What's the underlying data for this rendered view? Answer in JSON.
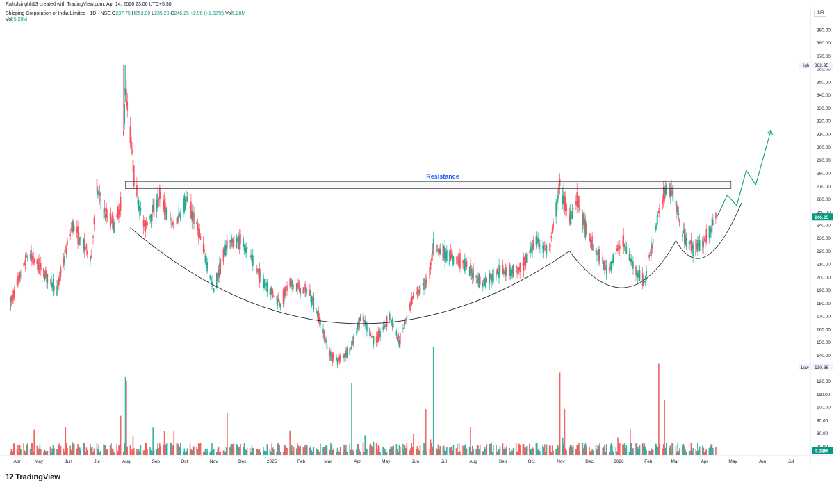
{
  "header": {
    "credit": "Rahulsinghh13 created with TradingView.com, Apr 14, 2026 23:06 UTC+5:30",
    "symbol": "Shipping Corporation of India Limited · 1D · NSE",
    "ohlc": [
      {
        "label": "O",
        "value": "237.75"
      },
      {
        "label": "H",
        "value": "253.00"
      },
      {
        "label": "L",
        "value": "235.20"
      },
      {
        "label": "C",
        "value": "246.25"
      },
      {
        "label": "",
        "value": "+2.96 (+1.22%)"
      }
    ],
    "vol_label": "Vol",
    "vol_value": "5.28M",
    "vol_line_label": "Vol",
    "vol_line_value": "5.28M"
  },
  "currency": "INR",
  "logo": {
    "mark": "17",
    "text": "TradingView"
  },
  "colors": {
    "up": "#089981",
    "down": "#f23645",
    "up_candle": "#22ab94",
    "down_candle": "#f7525f",
    "vol_up": "#26a69a",
    "vol_down": "#ef5350",
    "annotation": "#131722",
    "resistance_text": "#2962ff",
    "arrow": "#089981",
    "price_line": "#089981"
  },
  "chart_data": {
    "type": "candlestick",
    "title": "",
    "y_axis": {
      "ticks": [
        "390.00",
        "380.00",
        "370.00",
        "360.00",
        "350.00",
        "340.00",
        "330.00",
        "320.00",
        "310.00",
        "300.00",
        "290.00",
        "280.00",
        "270.00",
        "260.00",
        "250.00",
        "240.00",
        "230.00",
        "220.00",
        "210.00",
        "200.00",
        "190.00",
        "180.00",
        "170.00",
        "160.00",
        "150.00",
        "140.00",
        "130.00",
        "120.00",
        "110.00",
        "100.00",
        "90.00",
        "80.00",
        "70.00"
      ],
      "range": [
        65,
        398
      ]
    },
    "x_axis": {
      "ticks": [
        "Apr",
        "May",
        "Jun",
        "Jul",
        "Aug",
        "Sep",
        "Oct",
        "Nov",
        "Dec",
        "2025",
        "Feb",
        "Mar",
        "Apr",
        "May",
        "Jun",
        "Jul",
        "Aug",
        "Sep",
        "Oct",
        "Nov",
        "Dec",
        "2026",
        "Feb",
        "Mar",
        "Apr",
        "May",
        "Jun",
        "Jul"
      ],
      "range": [
        "2024-04",
        "2026-07"
      ]
    },
    "price_labels": {
      "high": {
        "label": "High",
        "value": "362.95"
      },
      "low": {
        "label": "Low",
        "value": "130.86"
      },
      "last": {
        "value": "246.25"
      },
      "volume": {
        "value": "5.28M"
      }
    },
    "series": [
      {
        "name": "price",
        "daily_ohlc": "candles, approximated from the visible path",
        "path_points": [
          [
            "2024-04-01",
            180
          ],
          [
            "2024-04-20",
            218
          ],
          [
            "2024-05-10",
            200
          ],
          [
            "2024-05-20",
            190
          ],
          [
            "2024-06-05",
            240
          ],
          [
            "2024-06-25",
            215
          ],
          [
            "2024-07-01",
            268
          ],
          [
            "2024-07-10",
            248
          ],
          [
            "2024-07-20",
            240
          ],
          [
            "2024-07-26",
            255
          ],
          [
            "2024-07-31",
            345
          ],
          [
            "2024-08-05",
            310
          ],
          [
            "2024-08-10",
            270
          ],
          [
            "2024-08-20",
            238
          ],
          [
            "2024-09-05",
            262
          ],
          [
            "2024-09-20",
            238
          ],
          [
            "2024-10-03",
            260
          ],
          [
            "2024-10-15",
            238
          ],
          [
            "2024-11-01",
            190
          ],
          [
            "2024-11-15",
            226
          ],
          [
            "2024-12-01",
            228
          ],
          [
            "2024-12-20",
            200
          ],
          [
            "2025-01-10",
            180
          ],
          [
            "2025-01-20",
            195
          ],
          [
            "2025-02-10",
            188
          ],
          [
            "2025-02-20",
            168
          ],
          [
            "2025-03-03",
            140
          ],
          [
            "2025-03-12",
            136
          ],
          [
            "2025-03-25",
            145
          ],
          [
            "2025-04-05",
            170
          ],
          [
            "2025-04-20",
            150
          ],
          [
            "2025-05-05",
            170
          ],
          [
            "2025-05-15",
            150
          ],
          [
            "2025-05-30",
            185
          ],
          [
            "2025-06-15",
            198
          ],
          [
            "2025-06-20",
            225
          ],
          [
            "2025-07-05",
            216
          ],
          [
            "2025-07-20",
            212
          ],
          [
            "2025-08-10",
            195
          ],
          [
            "2025-08-30",
            205
          ],
          [
            "2025-09-20",
            205
          ],
          [
            "2025-10-05",
            228
          ],
          [
            "2025-10-20",
            220
          ],
          [
            "2025-10-31",
            270
          ],
          [
            "2025-11-10",
            245
          ],
          [
            "2025-11-18",
            260
          ],
          [
            "2025-11-30",
            230
          ],
          [
            "2025-12-10",
            218
          ],
          [
            "2025-12-20",
            205
          ],
          [
            "2026-01-05",
            228
          ],
          [
            "2026-01-15",
            210
          ],
          [
            "2026-01-28",
            196
          ],
          [
            "2026-02-05",
            225
          ],
          [
            "2026-02-12",
            248
          ],
          [
            "2026-02-20",
            270
          ],
          [
            "2026-02-28",
            265
          ],
          [
            "2026-03-08",
            235
          ],
          [
            "2026-03-20",
            222
          ],
          [
            "2026-03-30",
            225
          ],
          [
            "2026-04-14",
            246
          ]
        ]
      },
      {
        "name": "volume",
        "unit": "shares"
      }
    ],
    "annotations": {
      "resistance": {
        "label": "Resistance",
        "top": 273.5,
        "bottom": 268
      },
      "cup_low": 130,
      "arrow_path": [
        [
          "2026-04-14",
          246
        ],
        [
          "2026-04-25",
          263
        ],
        [
          "2026-05-05",
          255
        ],
        [
          "2026-05-15",
          282
        ],
        [
          "2026-05-25",
          271
        ],
        [
          "2026-06-10",
          313
        ]
      ]
    }
  }
}
